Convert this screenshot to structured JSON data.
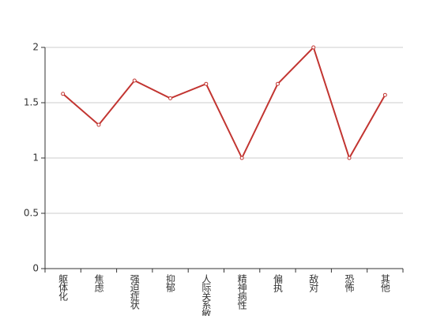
{
  "chart_data": {
    "type": "line",
    "categories": [
      "躯体化",
      "焦虑",
      "强迫症状",
      "抑郁",
      "人际关系敏感",
      "精神病性",
      "偏执",
      "敌对",
      "恐怖",
      "其他"
    ],
    "series": [
      {
        "color": "#c23531",
        "values": [
          1.58,
          1.3,
          1.7,
          1.54,
          1.67,
          1.0,
          1.67,
          2.0,
          1.0,
          1.57
        ]
      }
    ],
    "ylim": [
      0,
      2
    ],
    "yticks": [
      0,
      0.5,
      1,
      1.5,
      2
    ],
    "grid": true
  }
}
